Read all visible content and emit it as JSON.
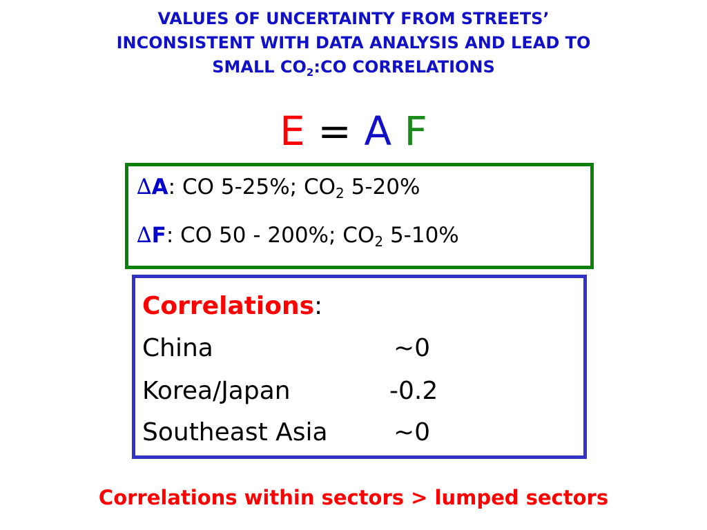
{
  "title": {
    "line1": "VALUES OF UNCERTAINTY FROM STREETS’",
    "line2": "INCONSISTENT WITH DATA ANALYSIS AND LEAD  TO",
    "line3_pre": "SMALL CO",
    "line3_sub": "2",
    "line3_post": ":CO CORRELATIONS"
  },
  "equation": {
    "e": "E",
    "equals": "=",
    "a": "A",
    "f": "F"
  },
  "uncertainty": {
    "delta_symbol": "∆",
    "a": {
      "letter": "A",
      "text_pre": ": CO 5-25%; CO",
      "sub": "2",
      "text_post": " 5-20%"
    },
    "f": {
      "letter": "F",
      "text_pre": ": CO 50 - 200%; CO",
      "sub": "2",
      "text_post": " 5-10%"
    }
  },
  "correlations": {
    "heading": "Correlations",
    "colon": ":",
    "rows": [
      {
        "region": "China",
        "value": "~0"
      },
      {
        "region": "Korea/Japan",
        "value": "-0.2"
      },
      {
        "region": "Southeast Asia",
        "value": "~0"
      }
    ]
  },
  "footer": {
    "note": "Correlations within sectors > lumped sectors"
  },
  "colors": {
    "title_blue": "#1010c8",
    "red": "#ff0000",
    "green_border": "#0a800a",
    "blue_border": "#3232c8",
    "f_green": "#1a8a1a"
  }
}
